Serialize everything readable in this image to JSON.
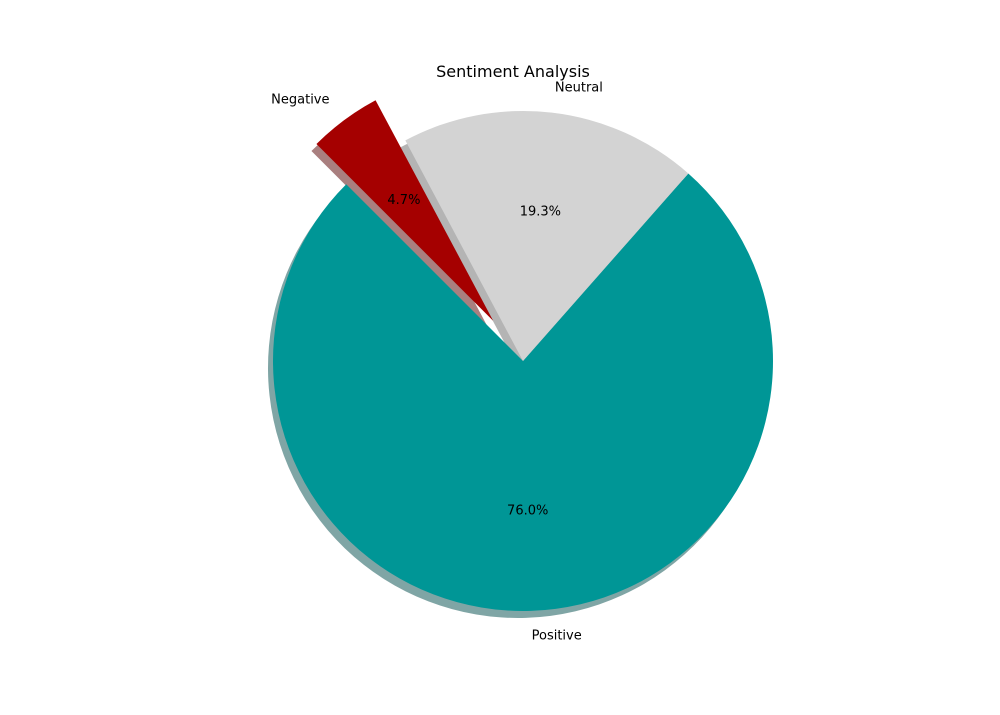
{
  "chart_data": {
    "type": "pie",
    "title": "Sentiment Analysis",
    "slices": [
      {
        "label": "Positive",
        "value": 76.0,
        "pct_label": "76.0%",
        "color": "#009696",
        "explode": false
      },
      {
        "label": "Neutral",
        "value": 19.3,
        "pct_label": "19.3%",
        "color": "#d3d3d3",
        "explode": false
      },
      {
        "label": "Negative",
        "value": 4.7,
        "pct_label": "4.7%",
        "color": "#a50000",
        "explode": true
      }
    ],
    "shadow": true,
    "legend": "none"
  }
}
